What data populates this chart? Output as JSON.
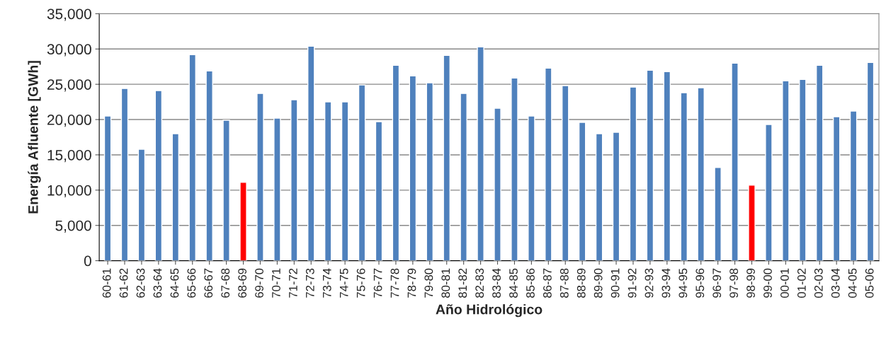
{
  "chart_data": {
    "type": "bar",
    "xlabel": "Año Hidrológico",
    "ylabel": "Energía Afluente [GWh]",
    "categories": [
      "60-61",
      "61-62",
      "62-63",
      "63-64",
      "64-65",
      "65-66",
      "66-67",
      "67-68",
      "68-69",
      "69-70",
      "70-71",
      "71-72",
      "72-73",
      "73-74",
      "74-75",
      "75-76",
      "76-77",
      "77-78",
      "78-79",
      "79-80",
      "80-81",
      "81-82",
      "82-83",
      "83-84",
      "84-85",
      "85-86",
      "86-87",
      "87-88",
      "88-89",
      "89-90",
      "90-91",
      "91-92",
      "92-93",
      "93-94",
      "94-95",
      "95-96",
      "96-97",
      "97-98",
      "98-99",
      "99-00",
      "00-01",
      "01-02",
      "02-03",
      "03-04",
      "04-05",
      "05-06"
    ],
    "values": [
      20500,
      24400,
      15800,
      24100,
      18000,
      29200,
      26900,
      19900,
      11100,
      23700,
      20200,
      22800,
      30400,
      22500,
      22500,
      24900,
      19700,
      27700,
      26200,
      25200,
      29100,
      23700,
      30300,
      21600,
      25900,
      20500,
      27300,
      24800,
      19600,
      18000,
      18200,
      24600,
      27000,
      26800,
      23800,
      24500,
      13200,
      28000,
      10700,
      19300,
      25500,
      25700,
      27700,
      20400,
      21200,
      28100
    ],
    "colors": [
      "#4f81bd",
      "#4f81bd",
      "#4f81bd",
      "#4f81bd",
      "#4f81bd",
      "#4f81bd",
      "#4f81bd",
      "#4f81bd",
      "#ff0000",
      "#4f81bd",
      "#4f81bd",
      "#4f81bd",
      "#4f81bd",
      "#4f81bd",
      "#4f81bd",
      "#4f81bd",
      "#4f81bd",
      "#4f81bd",
      "#4f81bd",
      "#4f81bd",
      "#4f81bd",
      "#4f81bd",
      "#4f81bd",
      "#4f81bd",
      "#4f81bd",
      "#4f81bd",
      "#4f81bd",
      "#4f81bd",
      "#4f81bd",
      "#4f81bd",
      "#4f81bd",
      "#4f81bd",
      "#4f81bd",
      "#4f81bd",
      "#4f81bd",
      "#4f81bd",
      "#4f81bd",
      "#4f81bd",
      "#ff0000",
      "#4f81bd",
      "#4f81bd",
      "#4f81bd",
      "#4f81bd",
      "#4f81bd",
      "#4f81bd",
      "#4f81bd"
    ],
    "ylim": [
      0,
      35000
    ],
    "yticks": [
      {
        "value": 0,
        "label": "0"
      },
      {
        "value": 5000,
        "label": "5,000"
      },
      {
        "value": 10000,
        "label": "10,000"
      },
      {
        "value": 15000,
        "label": "15,000"
      },
      {
        "value": 20000,
        "label": "20,000"
      },
      {
        "value": 25000,
        "label": "25,000"
      },
      {
        "value": 30000,
        "label": "30,000"
      },
      {
        "value": 35000,
        "label": "35,000"
      }
    ],
    "grid": "y"
  }
}
